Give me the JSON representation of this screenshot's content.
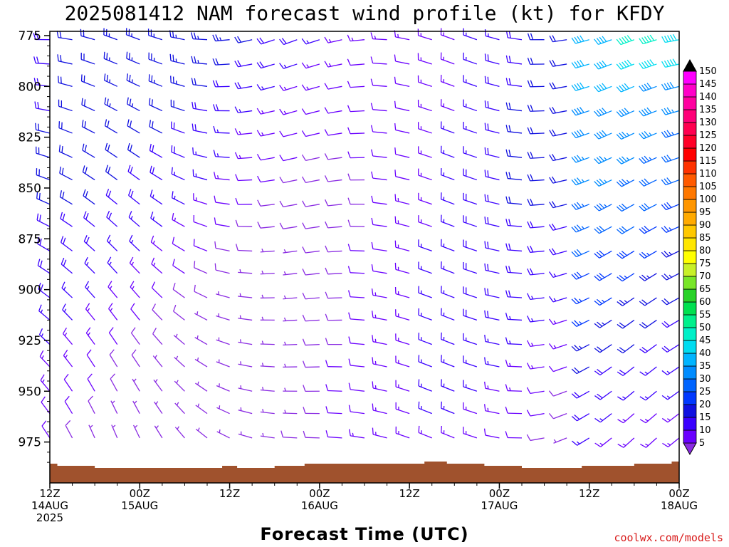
{
  "chart_data": {
    "type": "wind-barb-time-height",
    "title": "2025081412 NAM forecast wind profile (kt) for KFDY",
    "xlabel": "Forecast Time (UTC)",
    "credit": "coolwx.com/models",
    "y_axis": {
      "reversed": true,
      "range": [
        770,
        990
      ],
      "ticks": [
        {
          "value": 775,
          "label": "775"
        },
        {
          "value": 800,
          "label": "800"
        },
        {
          "value": 825,
          "label": "825"
        },
        {
          "value": 850,
          "label": "850"
        },
        {
          "value": 875,
          "label": "875"
        },
        {
          "value": 900,
          "label": "900"
        },
        {
          "value": 925,
          "label": "925"
        },
        {
          "value": 950,
          "label": "950"
        },
        {
          "value": 975,
          "label": "975"
        }
      ]
    },
    "x_axis": {
      "range_hours": [
        0,
        84
      ],
      "ticks": [
        {
          "hour": 0,
          "lines": [
            "12Z",
            "14AUG",
            "2025"
          ]
        },
        {
          "hour": 12,
          "lines": [
            "00Z",
            "15AUG"
          ]
        },
        {
          "hour": 24,
          "lines": [
            "12Z"
          ]
        },
        {
          "hour": 36,
          "lines": [
            "00Z",
            "16AUG"
          ]
        },
        {
          "hour": 48,
          "lines": [
            "12Z"
          ]
        },
        {
          "hour": 60,
          "lines": [
            "00Z",
            "17AUG"
          ]
        },
        {
          "hour": 72,
          "lines": [
            "12Z"
          ]
        },
        {
          "hour": 84,
          "lines": [
            "00Z",
            "18AUG"
          ]
        }
      ]
    },
    "colorbar": {
      "levels": [
        {
          "value": 5,
          "color": "#8a2be2"
        },
        {
          "value": 10,
          "color": "#6a00ff"
        },
        {
          "value": 15,
          "color": "#3a00ff"
        },
        {
          "value": 20,
          "color": "#1010e0"
        },
        {
          "value": 25,
          "color": "#0038ff"
        },
        {
          "value": 30,
          "color": "#0064ff"
        },
        {
          "value": 35,
          "color": "#008cff"
        },
        {
          "value": 40,
          "color": "#00b4ff"
        },
        {
          "value": 45,
          "color": "#00dcf0"
        },
        {
          "value": 50,
          "color": "#00f0c8"
        },
        {
          "value": 55,
          "color": "#00f08c"
        },
        {
          "value": 60,
          "color": "#00e050"
        },
        {
          "value": 65,
          "color": "#28d228"
        },
        {
          "value": 70,
          "color": "#78e628"
        },
        {
          "value": 75,
          "color": "#c8f028"
        },
        {
          "value": 80,
          "color": "#ffff00"
        },
        {
          "value": 85,
          "color": "#ffe600"
        },
        {
          "value": 90,
          "color": "#ffc800"
        },
        {
          "value": 95,
          "color": "#ffaa00"
        },
        {
          "value": 100,
          "color": "#ff9600"
        },
        {
          "value": 105,
          "color": "#ff7800"
        },
        {
          "value": 110,
          "color": "#ff5a00"
        },
        {
          "value": 115,
          "color": "#ff3200"
        },
        {
          "value": 120,
          "color": "#ff0000"
        },
        {
          "value": 125,
          "color": "#ff0028"
        },
        {
          "value": 130,
          "color": "#ff0050"
        },
        {
          "value": 135,
          "color": "#ff0078"
        },
        {
          "value": 140,
          "color": "#ff00a0"
        },
        {
          "value": 145,
          "color": "#ff00c8"
        },
        {
          "value": 150,
          "color": "#ff00ff"
        }
      ],
      "over_color": "#000000",
      "under_color": "#8a2be2"
    },
    "terrain_color": "#a0522d",
    "surface_pressure_hpa": 985,
    "barb_levels_hpa": [
      777,
      789,
      800,
      812,
      823,
      835,
      846,
      858,
      869,
      881,
      892,
      904,
      915,
      927,
      938,
      950,
      961,
      973
    ],
    "barb_times_hours": [
      0,
      3,
      6,
      9,
      12,
      15,
      18,
      21,
      24,
      27,
      30,
      33,
      36,
      39,
      42,
      45,
      48,
      51,
      54,
      57,
      60,
      63,
      66,
      69,
      72,
      75,
      78,
      81,
      84
    ]
  }
}
